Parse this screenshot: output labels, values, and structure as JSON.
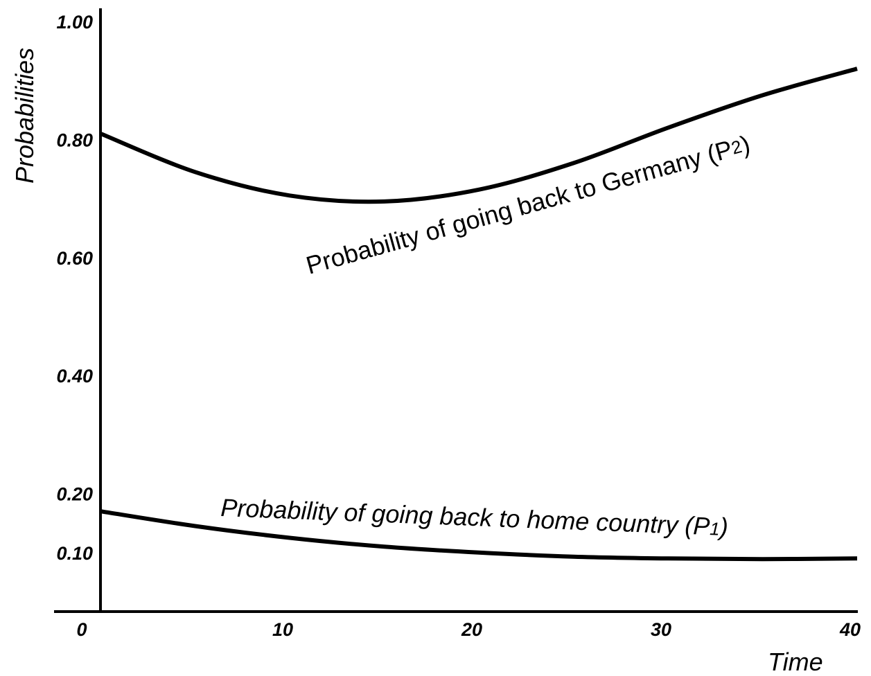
{
  "chart_data": {
    "type": "line",
    "title": "",
    "xlabel": "Time",
    "ylabel": "Probabilities",
    "xlim": [
      0,
      40
    ],
    "ylim": [
      0,
      1.0
    ],
    "x_ticks": [
      "0",
      "10",
      "20",
      "30",
      "40"
    ],
    "y_ticks": [
      {
        "value": 1.0,
        "label": "1.00"
      },
      {
        "value": 0.8,
        "label": "0.80"
      },
      {
        "value": 0.6,
        "label": "0.60"
      },
      {
        "value": 0.4,
        "label": "0.40"
      },
      {
        "value": 0.2,
        "label": "0.20"
      },
      {
        "value": 0.1,
        "label": "0.10"
      }
    ],
    "grid": false,
    "series": [
      {
        "name": "Probability of going back to Germany (P2)",
        "label_main": "Probability of going back to Germany (P",
        "label_sub": "2",
        "label_close": ")",
        "color": "#000000",
        "x": [
          0,
          5,
          10,
          15,
          20,
          25,
          30,
          35,
          40
        ],
        "y": [
          0.81,
          0.745,
          0.705,
          0.695,
          0.715,
          0.76,
          0.82,
          0.875,
          0.92
        ]
      },
      {
        "name": "Probability of going back to home country (P1)",
        "label_main": "Probability of going back to home country (P",
        "label_sub": "1",
        "label_close": ")",
        "color": "#000000",
        "x": [
          0,
          5,
          10,
          15,
          20,
          25,
          30,
          35,
          40
        ],
        "y": [
          0.17,
          0.145,
          0.125,
          0.11,
          0.1,
          0.093,
          0.09,
          0.089,
          0.09
        ]
      }
    ]
  }
}
